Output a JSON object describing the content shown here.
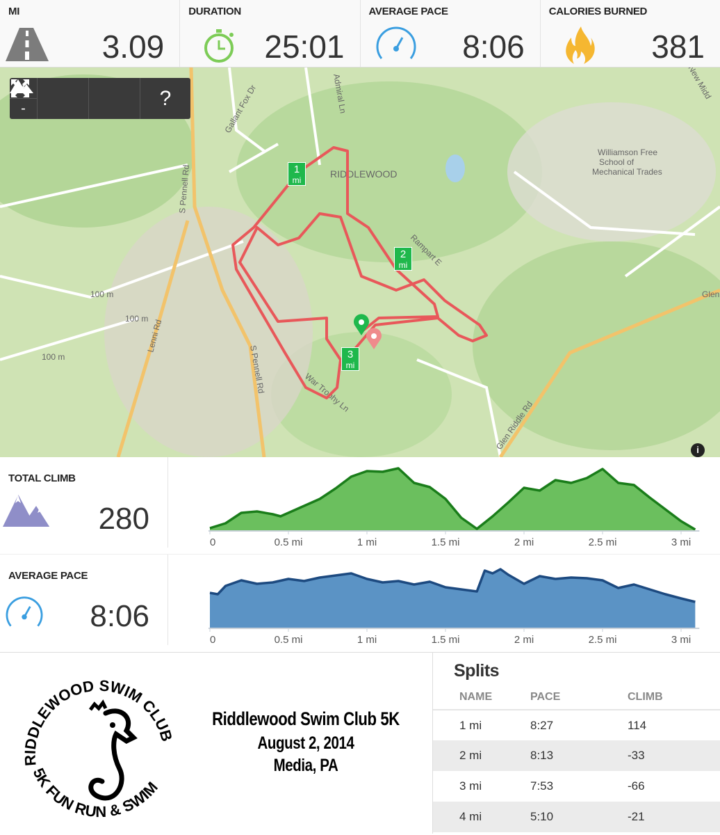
{
  "stats": [
    {
      "label": "MI",
      "value": "3.09",
      "icon": "road-icon"
    },
    {
      "label": "DURATION",
      "value": "25:01",
      "icon": "stopwatch-icon"
    },
    {
      "label": "AVERAGE PACE",
      "value": "8:06",
      "icon": "speedometer-icon"
    },
    {
      "label": "CALORIES BURNED",
      "value": "381",
      "icon": "flame-icon"
    }
  ],
  "map": {
    "controls": {
      "zoom_in": "+",
      "zoom_out": "-",
      "help": "?"
    },
    "labels": [
      "RIDDLEWOOD",
      "Gallant Fox Dr",
      "Admiral Ln",
      "S Pennell Rd",
      "Lenni Rd",
      "Rampart E",
      "War Trophy Ln",
      "Glen Riddle Rd",
      "Williamson Free",
      "School of",
      "Mechanical Trades",
      "100 m",
      "New Midd",
      "Glen"
    ],
    "markers": [
      {
        "n": "1",
        "u": "mi"
      },
      {
        "n": "2",
        "u": "mi"
      },
      {
        "n": "3",
        "u": "mi"
      }
    ],
    "info": "i",
    "colors": {
      "route": "#e8585a",
      "marker": "#1fb84c"
    }
  },
  "climb": {
    "label": "TOTAL CLIMB",
    "value": "280"
  },
  "pace": {
    "label": "AVERAGE PACE",
    "value": "8:06"
  },
  "chart_data": [
    {
      "type": "area",
      "title": "",
      "xlabel": "",
      "ticks": [
        "0",
        "0.5 mi",
        "1 mi",
        "1.5 mi",
        "2 mi",
        "2.5 mi",
        "3 mi"
      ],
      "xlim": [
        0,
        3.09
      ],
      "color": "#6bbf5e",
      "line": "#1a7d1a",
      "x": [
        0,
        0.1,
        0.2,
        0.3,
        0.4,
        0.45,
        0.55,
        0.6,
        0.7,
        0.8,
        0.9,
        1.0,
        1.1,
        1.2,
        1.3,
        1.4,
        1.5,
        1.6,
        1.7,
        1.8,
        1.9,
        2.0,
        2.1,
        2.2,
        2.3,
        2.4,
        2.5,
        2.6,
        2.7,
        2.8,
        2.9,
        3.0,
        3.09
      ],
      "y": [
        3,
        10,
        25,
        27,
        23,
        20,
        30,
        35,
        45,
        60,
        77,
        85,
        84,
        89,
        68,
        62,
        45,
        18,
        2,
        20,
        40,
        61,
        57,
        72,
        68,
        75,
        88,
        68,
        65,
        47,
        30,
        13,
        1
      ]
    },
    {
      "type": "area",
      "title": "",
      "xlabel": "",
      "ticks": [
        "0",
        "0.5 mi",
        "1 mi",
        "1.5 mi",
        "2 mi",
        "2.5 mi",
        "3 mi"
      ],
      "xlim": [
        0,
        3.09
      ],
      "color": "#5b93c5",
      "line": "#1d4a80",
      "x": [
        0,
        0.05,
        0.1,
        0.2,
        0.3,
        0.4,
        0.5,
        0.6,
        0.7,
        0.8,
        0.9,
        1.0,
        1.1,
        1.2,
        1.3,
        1.4,
        1.5,
        1.6,
        1.7,
        1.75,
        1.8,
        1.85,
        1.9,
        2.0,
        2.1,
        2.2,
        2.3,
        2.4,
        2.5,
        2.6,
        2.7,
        2.8,
        2.9,
        3.0,
        3.09
      ],
      "y": [
        50,
        48,
        60,
        68,
        63,
        65,
        70,
        67,
        72,
        75,
        78,
        70,
        65,
        67,
        62,
        66,
        58,
        55,
        52,
        82,
        78,
        84,
        76,
        63,
        74,
        70,
        72,
        71,
        68,
        57,
        62,
        55,
        48,
        42,
        37
      ]
    }
  ],
  "race": {
    "title": "Riddlewood Swim Club 5K",
    "date": "August 2, 2014",
    "place": "Media, PA",
    "logo_text": "RIDDLEWOOD SWIM CLUB 5K FUN RUN & SWIM"
  },
  "splits": {
    "title": "Splits",
    "headers": [
      "NAME",
      "PACE",
      "CLIMB"
    ],
    "rows": [
      [
        "1 mi",
        "8:27",
        "114"
      ],
      [
        "2 mi",
        "8:13",
        "-33"
      ],
      [
        "3 mi",
        "7:53",
        "-66"
      ],
      [
        "4 mi",
        "5:10",
        "-21"
      ]
    ]
  }
}
